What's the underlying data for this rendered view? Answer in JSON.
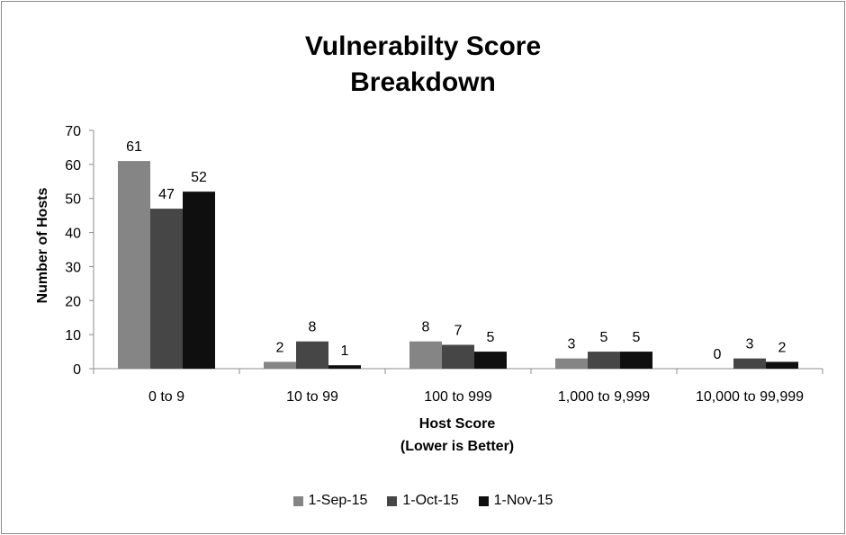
{
  "chart_data": {
    "type": "bar",
    "title": [
      "Vulnerabilty Score",
      "Breakdown"
    ],
    "xlabel": [
      "Host Score",
      "(Lower is Better)"
    ],
    "ylabel": "Number of Hosts",
    "ylim": [
      0,
      70
    ],
    "yticks": [
      0,
      10,
      20,
      30,
      40,
      50,
      60,
      70
    ],
    "categories": [
      "0 to 9",
      "10 to 99",
      "100 to 999",
      "1,000 to 9,999",
      "10,000 to 99,999"
    ],
    "series": [
      {
        "name": "1-Sep-15",
        "color": "#858585",
        "values": [
          61,
          2,
          8,
          3,
          0
        ]
      },
      {
        "name": "1-Oct-15",
        "color": "#464646",
        "values": [
          47,
          8,
          7,
          5,
          3
        ]
      },
      {
        "name": "1-Nov-15",
        "color": "#0f0f0f",
        "values": [
          52,
          1,
          5,
          5,
          2
        ]
      }
    ],
    "grid": false,
    "legend_position": "bottom"
  }
}
